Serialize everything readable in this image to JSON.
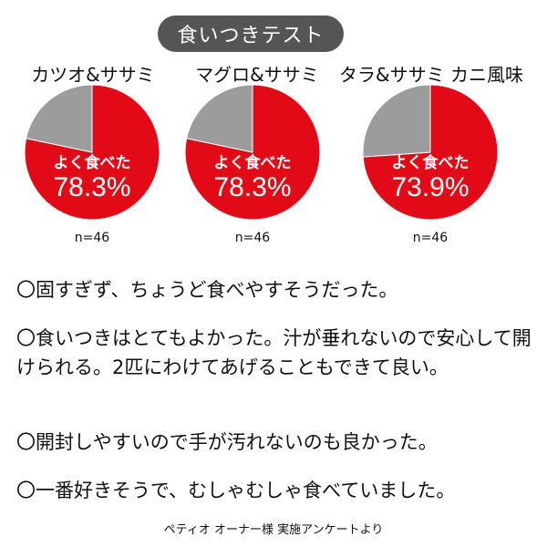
{
  "title": "食いつきテスト",
  "colors": {
    "primary": "#e20a17",
    "secondary": "#9c9c9c",
    "pill": "#555555"
  },
  "chart_data": [
    {
      "type": "pie",
      "title": "カツオ&ササミ",
      "slice_label": "よく食べた",
      "value_label": "78.3%",
      "values": [
        78.3,
        21.7
      ],
      "n_label": "n=46"
    },
    {
      "type": "pie",
      "title": "マグロ&ササミ",
      "slice_label": "よく食べた",
      "value_label": "78.3%",
      "values": [
        78.3,
        21.7
      ],
      "n_label": "n=46"
    },
    {
      "type": "pie",
      "title": "タラ&ササミ カニ風味",
      "slice_label": "よく食べた",
      "value_label": "73.9%",
      "values": [
        73.9,
        26.1
      ],
      "n_label": "n=46"
    }
  ],
  "comments": [
    "〇固すぎず、ちょうど食べやすそうだった。",
    "〇食いつきはとてもよかった。汁が垂れないので安心して開けられる。2匹にわけてあげることもできて良い。",
    "〇開封しやすいので手が汚れないのも良かった。",
    "〇一番好きそうで、むしゃむしゃ食べていました。"
  ],
  "footer": "ペティオ オーナー様 実施アンケートより"
}
